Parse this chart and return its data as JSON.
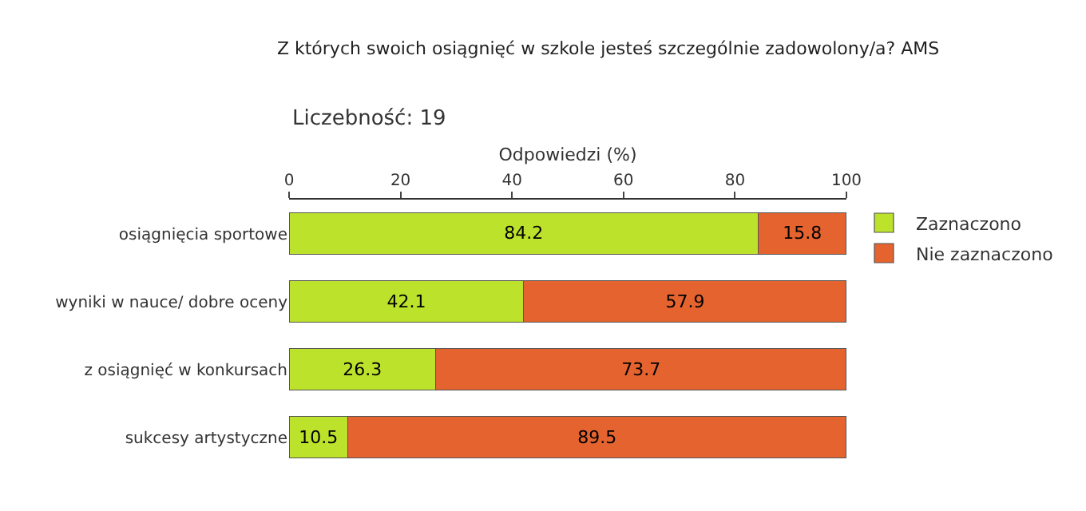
{
  "chart_data": {
    "type": "bar",
    "orientation": "horizontal",
    "stacked": true,
    "title": "Z których swoich osiągnięć w szkole jesteś szczególnie zadowolony/a? AMS",
    "annotations": [
      "Liczebność: 19"
    ],
    "xlabel": "Odpowiedzi (%)",
    "categories": [
      "osiągnięcia sportowe",
      "wyniki w nauce/ dobre oceny",
      "z osiągnięć w konkursach",
      "sukcesy artystyczne"
    ],
    "series": [
      {
        "name": "Zaznaczono",
        "color": "#bde22c",
        "values": [
          84.2,
          42.1,
          26.3,
          10.5
        ]
      },
      {
        "name": "Nie zaznaczono",
        "color": "#e4632f",
        "values": [
          15.8,
          57.9,
          73.7,
          89.5
        ]
      }
    ],
    "xlim": [
      0,
      100
    ],
    "xticks": [
      0,
      20,
      40,
      60,
      80,
      100
    ],
    "data_labels": true,
    "legend": "top right"
  }
}
